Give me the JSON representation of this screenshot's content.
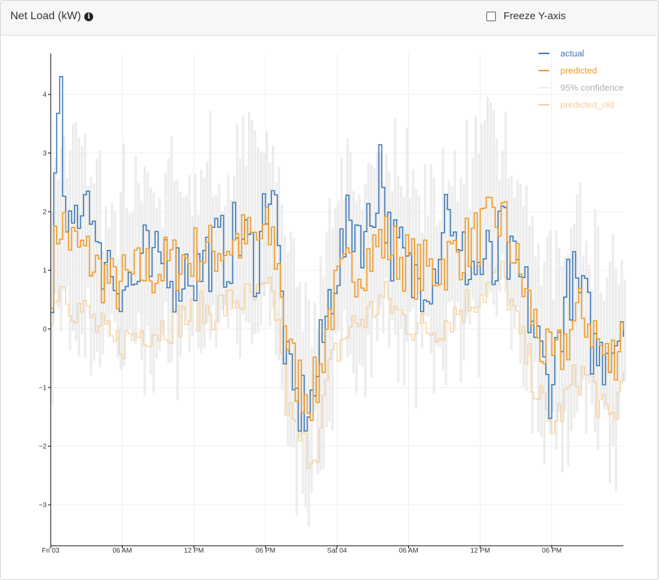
{
  "header": {
    "title": "Net Load (kW)",
    "freeze_label": "Freeze Y-axis",
    "freeze_checked": false
  },
  "colors": {
    "actual": "#3b78b5",
    "predicted": "#f0991f",
    "confidence": "#ececec",
    "predicted_old": "#f7cf97",
    "grid": "#eeeeee",
    "axis": "#000000"
  },
  "chart_data": {
    "type": "line",
    "xlabel": "",
    "ylabel": "",
    "ylim": [
      -3.7,
      4.7
    ],
    "y_ticks": [
      4,
      3,
      2,
      1,
      0,
      -1,
      -2,
      -3
    ],
    "y_tick_labels": [
      "4",
      "3",
      "2",
      "1",
      "0",
      "−1",
      "−2",
      "−3"
    ],
    "x_range_hours": [
      0,
      48
    ],
    "x_ticks": [
      {
        "hour": 0,
        "label": "Fri 03"
      },
      {
        "hour": 6,
        "label": "06 AM"
      },
      {
        "hour": 12,
        "label": "12 PM"
      },
      {
        "hour": 18,
        "label": "06 PM"
      },
      {
        "hour": 24,
        "label": "Sat 04"
      },
      {
        "hour": 30,
        "label": "06 AM"
      },
      {
        "hour": 36,
        "label": "12 PM"
      },
      {
        "hour": 42,
        "label": "06 PM"
      }
    ],
    "step_minutes": 15,
    "grid": true,
    "legend_position": "top-right",
    "legend": [
      "actual",
      "predicted",
      "95% confidence",
      "predicted_old"
    ],
    "series": [
      {
        "name": "actual",
        "step": true,
        "hourly_values": [
          0.9,
          4.2,
          1.2,
          1.9,
          2.3,
          2.5,
          0.9,
          1.4,
          0.9,
          0.85,
          0.8,
          0.7,
          1.3,
          0.9,
          1.1,
          1.4,
          0.9,
          1.0,
          1.1,
          0.9,
          1.2,
          1.3,
          1.4,
          1.2,
          1.6,
          1.5,
          1.3,
          1.1,
          2.3,
          2.5,
          0.6,
          -1.0,
          -1.3,
          -1.3,
          -1.3,
          -0.6,
          0.2,
          1.0,
          1.3,
          1.8,
          1.8,
          1.6,
          1.9,
          3.0,
          1.6,
          1.3,
          1.2,
          0.8,
          0.9,
          1.0,
          1.0,
          1.7,
          2.4,
          1.0,
          1.2,
          1.1,
          1.0,
          1.2,
          0.8,
          1.8,
          1.0,
          0.9,
          0.6,
          0.1,
          -0.5,
          -1.0,
          -0.5,
          0.4,
          0.8,
          0.6,
          0.3,
          -0.4,
          -0.5,
          -0.2,
          -0.1,
          0.5
        ]
      },
      {
        "name": "predicted",
        "step": true,
        "hourly_values": [
          0.9,
          1.9,
          1.6,
          1.4,
          1.3,
          1.2,
          1.0,
          0.9,
          0.7,
          0.8,
          0.8,
          0.9,
          1.0,
          1.0,
          1.0,
          1.1,
          1.1,
          1.2,
          1.2,
          1.3,
          1.3,
          1.3,
          1.4,
          1.4,
          1.5,
          1.5,
          1.5,
          1.5,
          1.6,
          1.5,
          0.8,
          -0.4,
          -0.8,
          -1.0,
          -1.1,
          -0.9,
          0.1,
          0.5,
          0.8,
          1.0,
          1.1,
          1.2,
          1.3,
          1.5,
          1.5,
          1.3,
          1.2,
          1.1,
          1.0,
          1.0,
          1.0,
          1.1,
          1.2,
          1.3,
          1.4,
          1.5,
          1.6,
          1.7,
          1.8,
          1.9,
          1.5,
          1.0,
          0.6,
          0.2,
          -0.2,
          -0.6,
          -0.6,
          -0.3,
          0.0,
          0.2,
          0.2,
          0.0,
          -0.4,
          -0.6,
          -0.3,
          0.3
        ]
      },
      {
        "name": "predicted_old",
        "step": true,
        "hourly_values": [
          0.1,
          0.9,
          0.6,
          0.4,
          0.3,
          0.2,
          0.0,
          -0.1,
          -0.3,
          -0.2,
          -0.2,
          -0.1,
          0.0,
          0.0,
          0.0,
          0.1,
          0.1,
          0.2,
          0.2,
          0.3,
          0.3,
          0.3,
          0.4,
          0.4,
          0.5,
          0.5,
          0.5,
          0.5,
          0.6,
          0.5,
          -0.2,
          -1.4,
          -1.8,
          -2.0,
          -2.1,
          -1.9,
          -0.9,
          -0.5,
          -0.2,
          0.0,
          0.1,
          0.2,
          0.3,
          0.5,
          0.5,
          0.3,
          0.2,
          0.1,
          0.0,
          0.0,
          0.0,
          0.1,
          0.2,
          0.3,
          0.4,
          0.5,
          0.6,
          0.7,
          0.8,
          0.9,
          0.5,
          0.0,
          -0.4,
          -0.8,
          -1.2,
          -1.6,
          -1.6,
          -1.3,
          -1.0,
          -0.8,
          -0.8,
          -1.0,
          -1.4,
          -1.6,
          -1.3,
          -0.7
        ]
      }
    ],
    "confidence_band": {
      "name": "95% confidence",
      "half_width_kw": 1.4
    }
  }
}
